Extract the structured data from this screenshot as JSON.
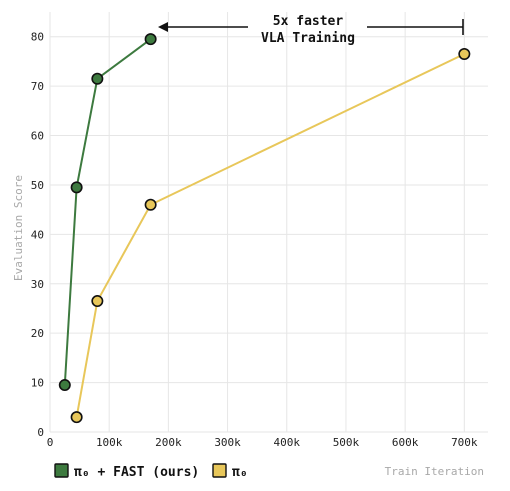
{
  "chart_data": {
    "type": "line",
    "xlabel": "Train Iteration",
    "ylabel": "Evaluation Score",
    "xlim": [
      0,
      740000
    ],
    "ylim": [
      0,
      85
    ],
    "x_ticks": [
      0,
      100000,
      200000,
      300000,
      400000,
      500000,
      600000,
      700000
    ],
    "x_tick_labels": [
      "0",
      "100k",
      "200k",
      "300k",
      "400k",
      "500k",
      "600k",
      "700k"
    ],
    "y_ticks": [
      0,
      10,
      20,
      30,
      40,
      50,
      60,
      70,
      80
    ],
    "y_tick_labels": [
      "0",
      "10",
      "20",
      "30",
      "40",
      "50",
      "60",
      "70",
      "80"
    ],
    "grid": true,
    "legend_position": "bottom-left",
    "series": [
      {
        "name": "π₀ + FAST (ours)",
        "color": "#3d7a3f",
        "points": [
          {
            "x": 25000,
            "y": 9.5
          },
          {
            "x": 45000,
            "y": 49.5
          },
          {
            "x": 80000,
            "y": 71.5
          },
          {
            "x": 170000,
            "y": 79.5
          }
        ]
      },
      {
        "name": "π₀",
        "color": "#e8c75a",
        "points": [
          {
            "x": 45000,
            "y": 3
          },
          {
            "x": 80000,
            "y": 26.5
          },
          {
            "x": 170000,
            "y": 46
          },
          {
            "x": 700000,
            "y": 76.5
          }
        ]
      }
    ],
    "annotation": {
      "lines": [
        "5x faster",
        "VLA Training"
      ]
    }
  }
}
